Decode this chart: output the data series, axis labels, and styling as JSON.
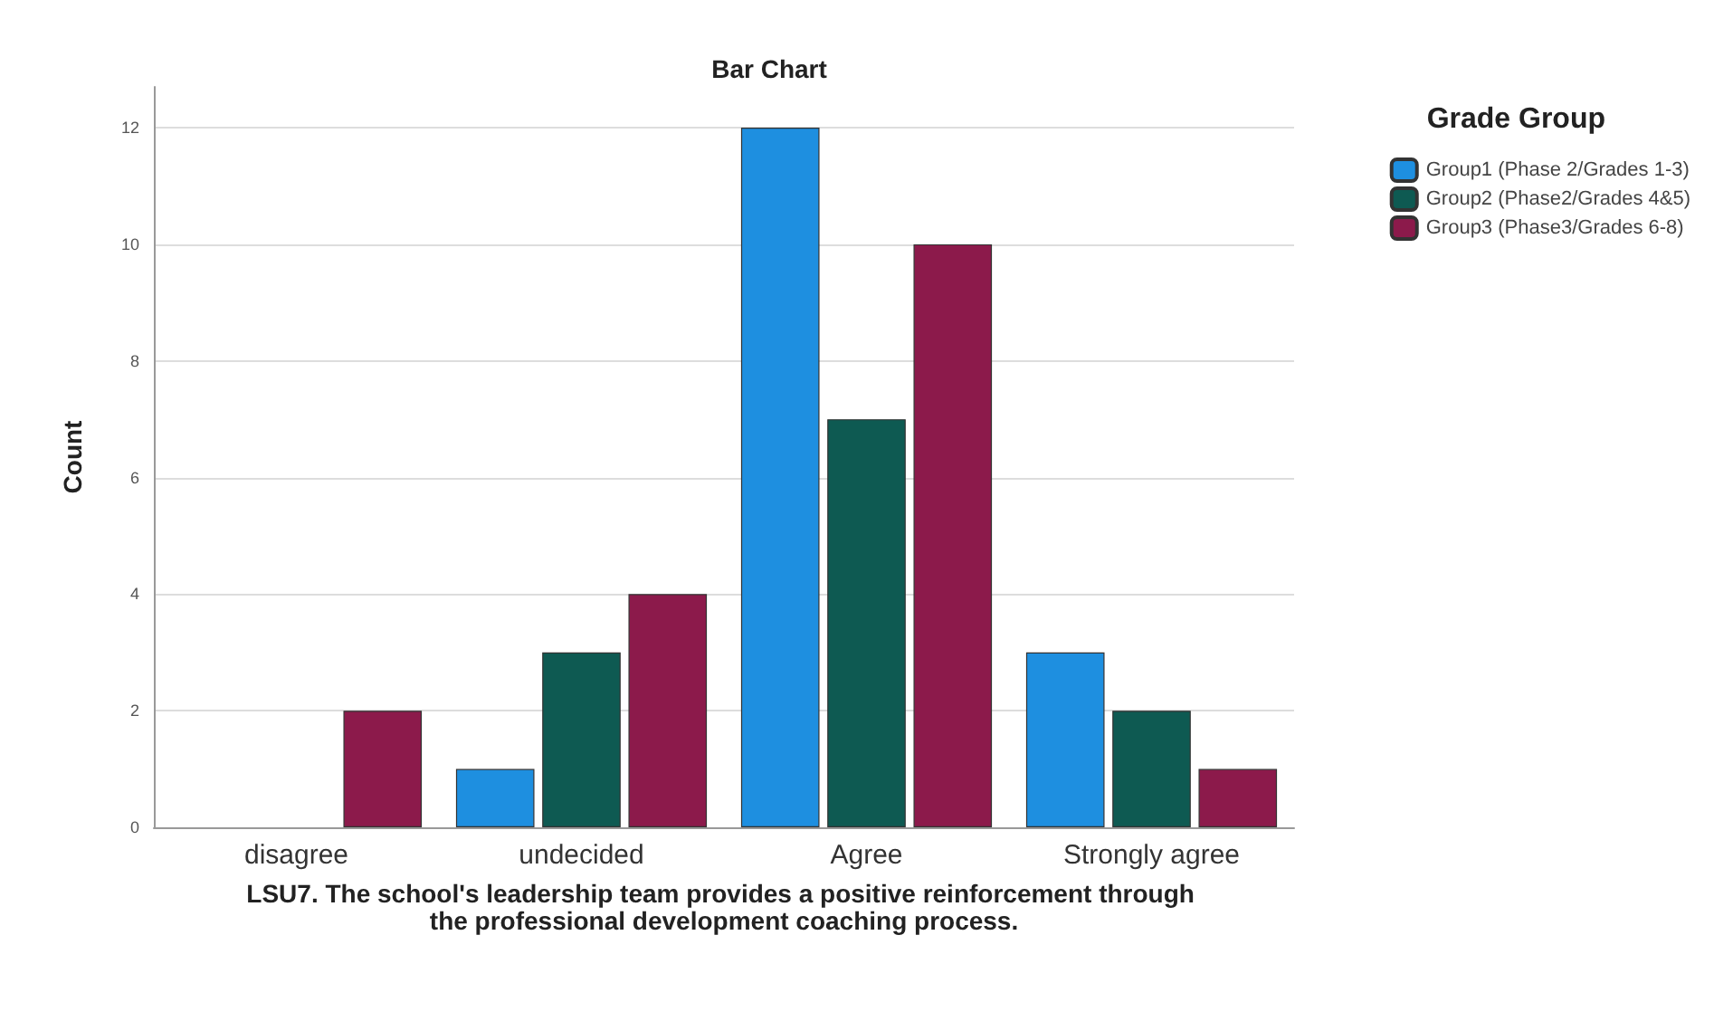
{
  "chart_data": {
    "type": "bar",
    "title": "Bar Chart",
    "xlabel": "LSU7. The school's leadership team provides a positive reinforcement through the professional development coaching process.",
    "ylabel": "Count",
    "legend_title": "Grade Group",
    "categories": [
      "disagree",
      "undecided",
      "Agree",
      "Strongly agree"
    ],
    "series": [
      {
        "name": "Group1 (Phase 2/Grades 1-3)",
        "color": "#1e8fe0",
        "values": [
          0,
          1,
          12,
          3
        ]
      },
      {
        "name": "Group2 (Phase2/Grades 4&5)",
        "color": "#0e5a52",
        "values": [
          0,
          3,
          7,
          2
        ]
      },
      {
        "name": "Group3 (Phase3/Grades 6-8)",
        "color": "#8c1a4b",
        "values": [
          2,
          4,
          10,
          1
        ]
      }
    ],
    "ylim": [
      0,
      12.7
    ],
    "yticks": [
      0,
      2,
      4,
      6,
      8,
      10,
      12
    ],
    "grid": "y",
    "legend": "top right"
  }
}
